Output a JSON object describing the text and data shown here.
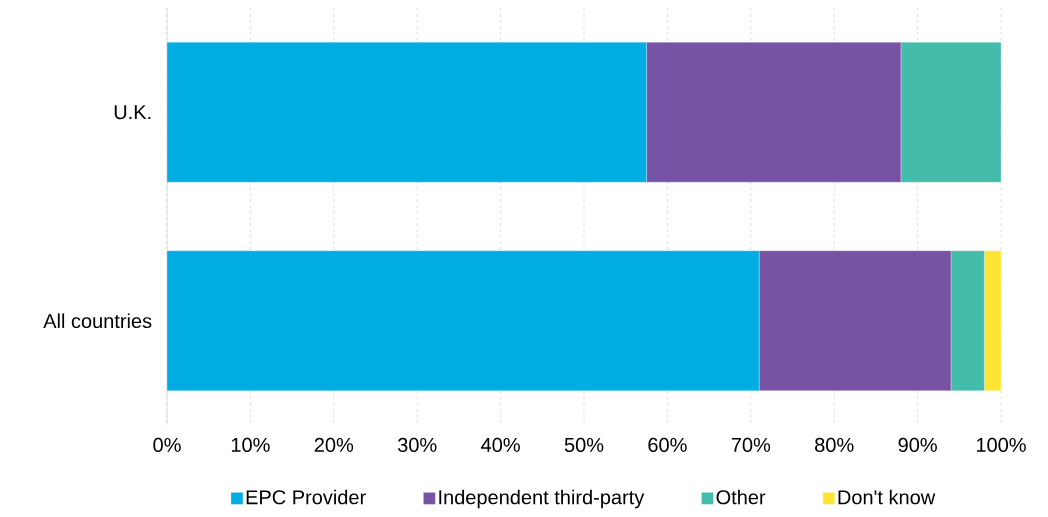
{
  "chart_data": {
    "type": "bar",
    "orientation": "horizontal",
    "stacked": true,
    "categories": [
      "U.K.",
      "All countries"
    ],
    "series": [
      {
        "name": "EPC Provider",
        "color": "#00ade3",
        "values": [
          57.5,
          71
        ]
      },
      {
        "name": "Independent third-party",
        "color": "#7853a3",
        "values": [
          30.5,
          23
        ]
      },
      {
        "name": "Other",
        "color": "#43bcab",
        "values": [
          12,
          4
        ]
      },
      {
        "name": "Don't know",
        "color": "#ffe533",
        "values": [
          null,
          2
        ]
      }
    ],
    "xlim": [
      0,
      100
    ],
    "xticks": [
      {
        "value": 0,
        "label": "0%"
      },
      {
        "value": 10,
        "label": "10%"
      },
      {
        "value": 20,
        "label": "20%"
      },
      {
        "value": 30,
        "label": "30%"
      },
      {
        "value": 40,
        "label": "40%"
      },
      {
        "value": 50,
        "label": "50%"
      },
      {
        "value": 60,
        "label": "60%"
      },
      {
        "value": 70,
        "label": "70%"
      },
      {
        "value": 80,
        "label": "80%"
      },
      {
        "value": 90,
        "label": "90%"
      },
      {
        "value": 100,
        "label": "100%"
      }
    ],
    "grid": "x",
    "legend": "bottom"
  }
}
